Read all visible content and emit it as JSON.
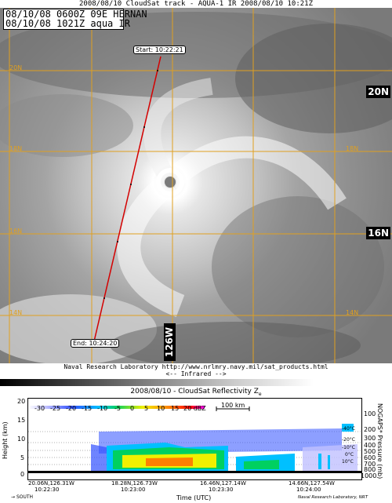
{
  "header": {
    "title": "2008/08/10 CloudSat track - AQUA-1 IR  2008/08/10 10:21Z",
    "info_line1": "08/10/08 0600Z  09E HERNAN",
    "info_line2": "08/10/08 1021Z  aqua IR"
  },
  "satellite": {
    "lat_labels": [
      "20N",
      "16N"
    ],
    "lon_label": "126W",
    "grid_labels": [
      "20N",
      "18N",
      "16N",
      "14N",
      "126W"
    ],
    "start_tag": "Start: 10:22:21",
    "end_tag": "End: 10:24:20",
    "track_color": "#d40000"
  },
  "footer": {
    "credit": "Naval Research Laboratory  http://www.nrlmry.navy.mil/sat_products.html",
    "legend_caption": "<--  Infrared  -->"
  },
  "radar": {
    "title": "2008/08/10 - CloudSat Reflectivity Z",
    "title_sub": "e",
    "colorbar_ticks": [
      "-30",
      "-25",
      "-20",
      "-15",
      "-10",
      "-5",
      "0",
      "5",
      "10",
      "15",
      "20 dBZ"
    ],
    "scale_label": "100 km",
    "y_label": "Height (km)",
    "y_ticks": [
      "20",
      "15",
      "10",
      "5",
      "0"
    ],
    "right_label": "NOGAPS* Pressure (mb)",
    "right_ticks": [
      "100",
      "200",
      "300",
      "400",
      "500",
      "600",
      "700",
      "800",
      "1000"
    ],
    "temp_labels": [
      "-40°C",
      "-20°C",
      "-10°C",
      "0°C",
      "10°C"
    ],
    "x_ticks": [
      {
        "pos": "20.06N,126.31W",
        "time": "10:22:30"
      },
      {
        "pos": "18.28N,126.73W",
        "time": "10:23:00"
      },
      {
        "pos": "16.46N,127.14W",
        "time": "10:23:30"
      },
      {
        "pos": "14.66N,127.54W",
        "time": "10:24:00"
      }
    ],
    "x_label": "Time (UTC)",
    "direction": "SOUTH",
    "credit": "Naval Research Laboratory, NRT"
  }
}
